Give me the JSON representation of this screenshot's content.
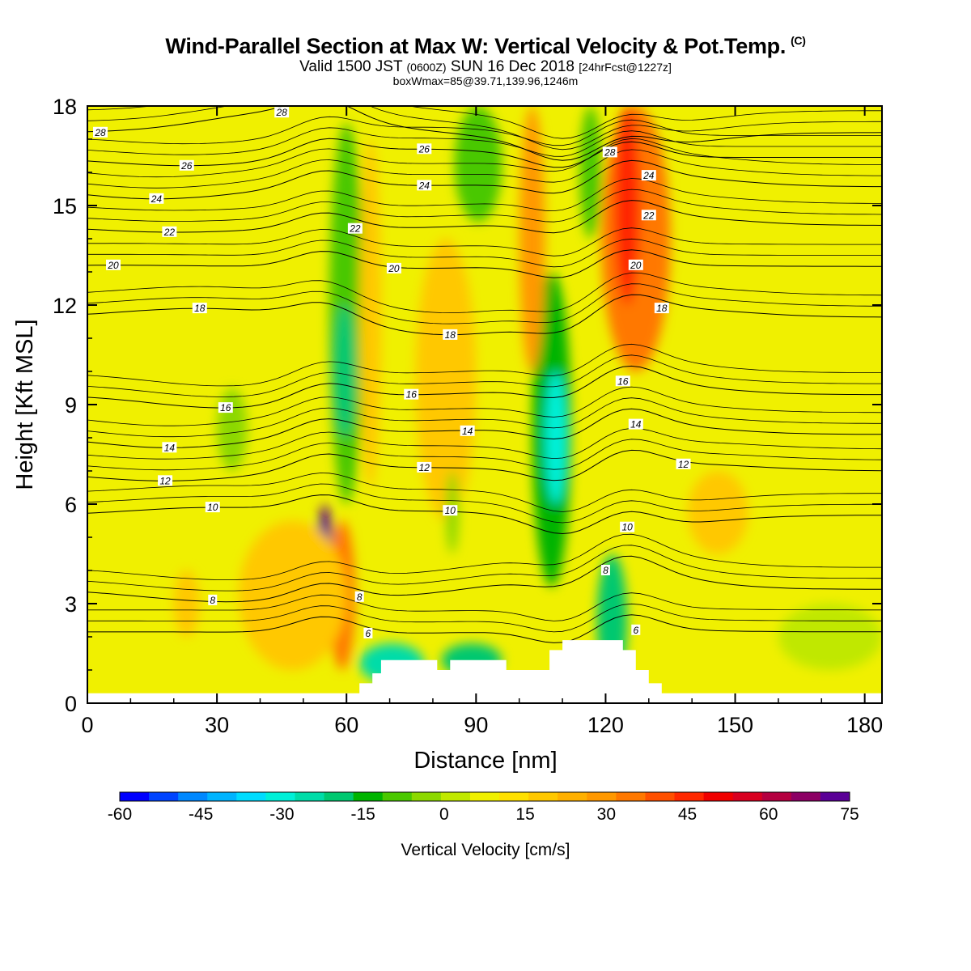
{
  "header": {
    "title": "Wind-Parallel Section at Max W: Vertical Velocity & Pot.Temp.",
    "copyright": "(C)",
    "valid_prefix": "Valid 1500 JST",
    "valid_utc": "(0600Z)",
    "valid_date": "SUN 16 Dec 2018",
    "forecast": "[24hrFcst@1227z]",
    "box_info": "boxWmax=85@39.71,139.96,1246m"
  },
  "chart_data": {
    "type": "heatmap",
    "xlabel": "Distance [nm]",
    "ylabel": "Height [Kft MSL]",
    "xlim": [
      0,
      184
    ],
    "ylim": [
      0,
      18
    ],
    "x_ticks": [
      "0",
      "30",
      "60",
      "90",
      "120",
      "150",
      "180"
    ],
    "y_ticks": [
      "0",
      "3",
      "6",
      "9",
      "12",
      "15",
      "18"
    ],
    "colorbar": {
      "title": "Vertical Velocity [cm/s]",
      "min": -60,
      "max": 75,
      "step": 5,
      "tick_labels": [
        "-60",
        "-45",
        "-30",
        "-15",
        "0",
        "15",
        "30",
        "45",
        "60",
        "75"
      ],
      "colors": [
        "#0000ff",
        "#0044ff",
        "#0088ff",
        "#00b4ff",
        "#00dcff",
        "#00f0d8",
        "#00dca8",
        "#00c870",
        "#00b400",
        "#4ac800",
        "#8cd800",
        "#c0e800",
        "#f0f000",
        "#ffe000",
        "#ffc800",
        "#ffb000",
        "#ff9800",
        "#ff7800",
        "#ff5000",
        "#ff2800",
        "#f00000",
        "#d80020",
        "#b40040",
        "#8c0064",
        "#5a0096"
      ]
    },
    "velocity_cells": [
      {
        "x": [
          63,
          78
        ],
        "z": [
          0.6,
          1.8
        ],
        "w": -28
      },
      {
        "x": [
          82,
          96
        ],
        "z": [
          0.8,
          1.8
        ],
        "w": -22
      },
      {
        "x": [
          56,
          62
        ],
        "z": [
          1.0,
          5.5
        ],
        "w": 25
      },
      {
        "x": [
          53,
          57
        ],
        "z": [
          2.0,
          6.0
        ],
        "w": 75
      },
      {
        "x": [
          56,
          64
        ],
        "z": [
          6.0,
          17.5
        ],
        "w": -15
      },
      {
        "x": [
          57,
          62
        ],
        "z": [
          8.0,
          12.0
        ],
        "w": -25
      },
      {
        "x": [
          63,
          68
        ],
        "z": [
          6.5,
          17.0
        ],
        "w": 10
      },
      {
        "x": [
          76,
          90
        ],
        "z": [
          5.5,
          14.0
        ],
        "w": 10
      },
      {
        "x": [
          83,
          86
        ],
        "z": [
          4.5,
          7.0
        ],
        "w": -10
      },
      {
        "x": [
          85,
          96
        ],
        "z": [
          14.5,
          18.0
        ],
        "w": -15
      },
      {
        "x": [
          103,
          112
        ],
        "z": [
          3.5,
          13.0
        ],
        "w": -18
      },
      {
        "x": [
          106,
          111
        ],
        "z": [
          6.0,
          10.0
        ],
        "w": -35
      },
      {
        "x": [
          100,
          106
        ],
        "z": [
          10.0,
          18.0
        ],
        "w": 20
      },
      {
        "x": [
          114,
          119
        ],
        "z": [
          14.0,
          18.0
        ],
        "w": -15
      },
      {
        "x": [
          118,
          125
        ],
        "z": [
          0.5,
          4.5
        ],
        "w": -25
      },
      {
        "x": [
          119,
          135
        ],
        "z": [
          10.0,
          18.0
        ],
        "w": 28
      },
      {
        "x": [
          122,
          128
        ],
        "z": [
          12.0,
          18.0
        ],
        "w": 38
      },
      {
        "x": [
          139,
          153
        ],
        "z": [
          4.5,
          7.0
        ],
        "w": 12
      },
      {
        "x": [
          30,
          37
        ],
        "z": [
          7.0,
          9.5
        ],
        "w": -10
      },
      {
        "x": [
          35,
          60
        ],
        "z": [
          1.0,
          5.5
        ],
        "w": 12
      },
      {
        "x": [
          20,
          26
        ],
        "z": [
          2.0,
          4.0
        ],
        "w": 12
      },
      {
        "x": [
          160,
          184
        ],
        "z": [
          1.0,
          3.0
        ],
        "w": -5
      }
    ],
    "pot_temp_contours": {
      "levels_C": [
        6,
        8,
        10,
        12,
        14,
        16,
        18,
        20,
        22,
        24,
        26,
        28
      ],
      "labels": [
        {
          "text": "28",
          "x": 3,
          "z": 17.2
        },
        {
          "text": "28",
          "x": 45,
          "z": 17.8
        },
        {
          "text": "28",
          "x": 121,
          "z": 16.6
        },
        {
          "text": "26",
          "x": 23,
          "z": 16.2
        },
        {
          "text": "26",
          "x": 78,
          "z": 16.7
        },
        {
          "text": "24",
          "x": 16,
          "z": 15.2
        },
        {
          "text": "24",
          "x": 78,
          "z": 15.6
        },
        {
          "text": "24",
          "x": 130,
          "z": 15.9
        },
        {
          "text": "22",
          "x": 19,
          "z": 14.2
        },
        {
          "text": "22",
          "x": 62,
          "z": 14.3
        },
        {
          "text": "22",
          "x": 130,
          "z": 14.7
        },
        {
          "text": "20",
          "x": 6,
          "z": 13.2
        },
        {
          "text": "20",
          "x": 71,
          "z": 13.1
        },
        {
          "text": "20",
          "x": 127,
          "z": 13.2
        },
        {
          "text": "18",
          "x": 26,
          "z": 11.9
        },
        {
          "text": "18",
          "x": 84,
          "z": 11.1
        },
        {
          "text": "18",
          "x": 133,
          "z": 11.9
        },
        {
          "text": "16",
          "x": 32,
          "z": 8.9
        },
        {
          "text": "16",
          "x": 75,
          "z": 9.3
        },
        {
          "text": "16",
          "x": 124,
          "z": 9.7
        },
        {
          "text": "14",
          "x": 19,
          "z": 7.7
        },
        {
          "text": "14",
          "x": 88,
          "z": 8.2
        },
        {
          "text": "14",
          "x": 127,
          "z": 8.4
        },
        {
          "text": "12",
          "x": 18,
          "z": 6.7
        },
        {
          "text": "12",
          "x": 78,
          "z": 7.1
        },
        {
          "text": "12",
          "x": 138,
          "z": 7.2
        },
        {
          "text": "10",
          "x": 29,
          "z": 5.9
        },
        {
          "text": "10",
          "x": 84,
          "z": 5.8
        },
        {
          "text": "10",
          "x": 125,
          "z": 5.3
        },
        {
          "text": "8",
          "x": 29,
          "z": 3.1
        },
        {
          "text": "8",
          "x": 63,
          "z": 3.2
        },
        {
          "text": "8",
          "x": 120,
          "z": 4.0
        },
        {
          "text": "6",
          "x": 65,
          "z": 2.1
        },
        {
          "text": "6",
          "x": 127,
          "z": 2.2
        }
      ]
    },
    "terrain_kft": [
      [
        0,
        0.3
      ],
      [
        52,
        0.3
      ],
      [
        63,
        0.3
      ],
      [
        63,
        0.6
      ],
      [
        66,
        0.6
      ],
      [
        66,
        0.9
      ],
      [
        68,
        0.9
      ],
      [
        68,
        1.3
      ],
      [
        81,
        1.3
      ],
      [
        81,
        1.0
      ],
      [
        84,
        1.0
      ],
      [
        84,
        1.3
      ],
      [
        97,
        1.3
      ],
      [
        97,
        1.0
      ],
      [
        107,
        1.0
      ],
      [
        107,
        1.6
      ],
      [
        110,
        1.6
      ],
      [
        110,
        1.9
      ],
      [
        124,
        1.9
      ],
      [
        124,
        1.6
      ],
      [
        127,
        1.6
      ],
      [
        127,
        1.0
      ],
      [
        130,
        1.0
      ],
      [
        130,
        0.6
      ],
      [
        133,
        0.6
      ],
      [
        133,
        0.3
      ],
      [
        184,
        0.3
      ]
    ]
  }
}
